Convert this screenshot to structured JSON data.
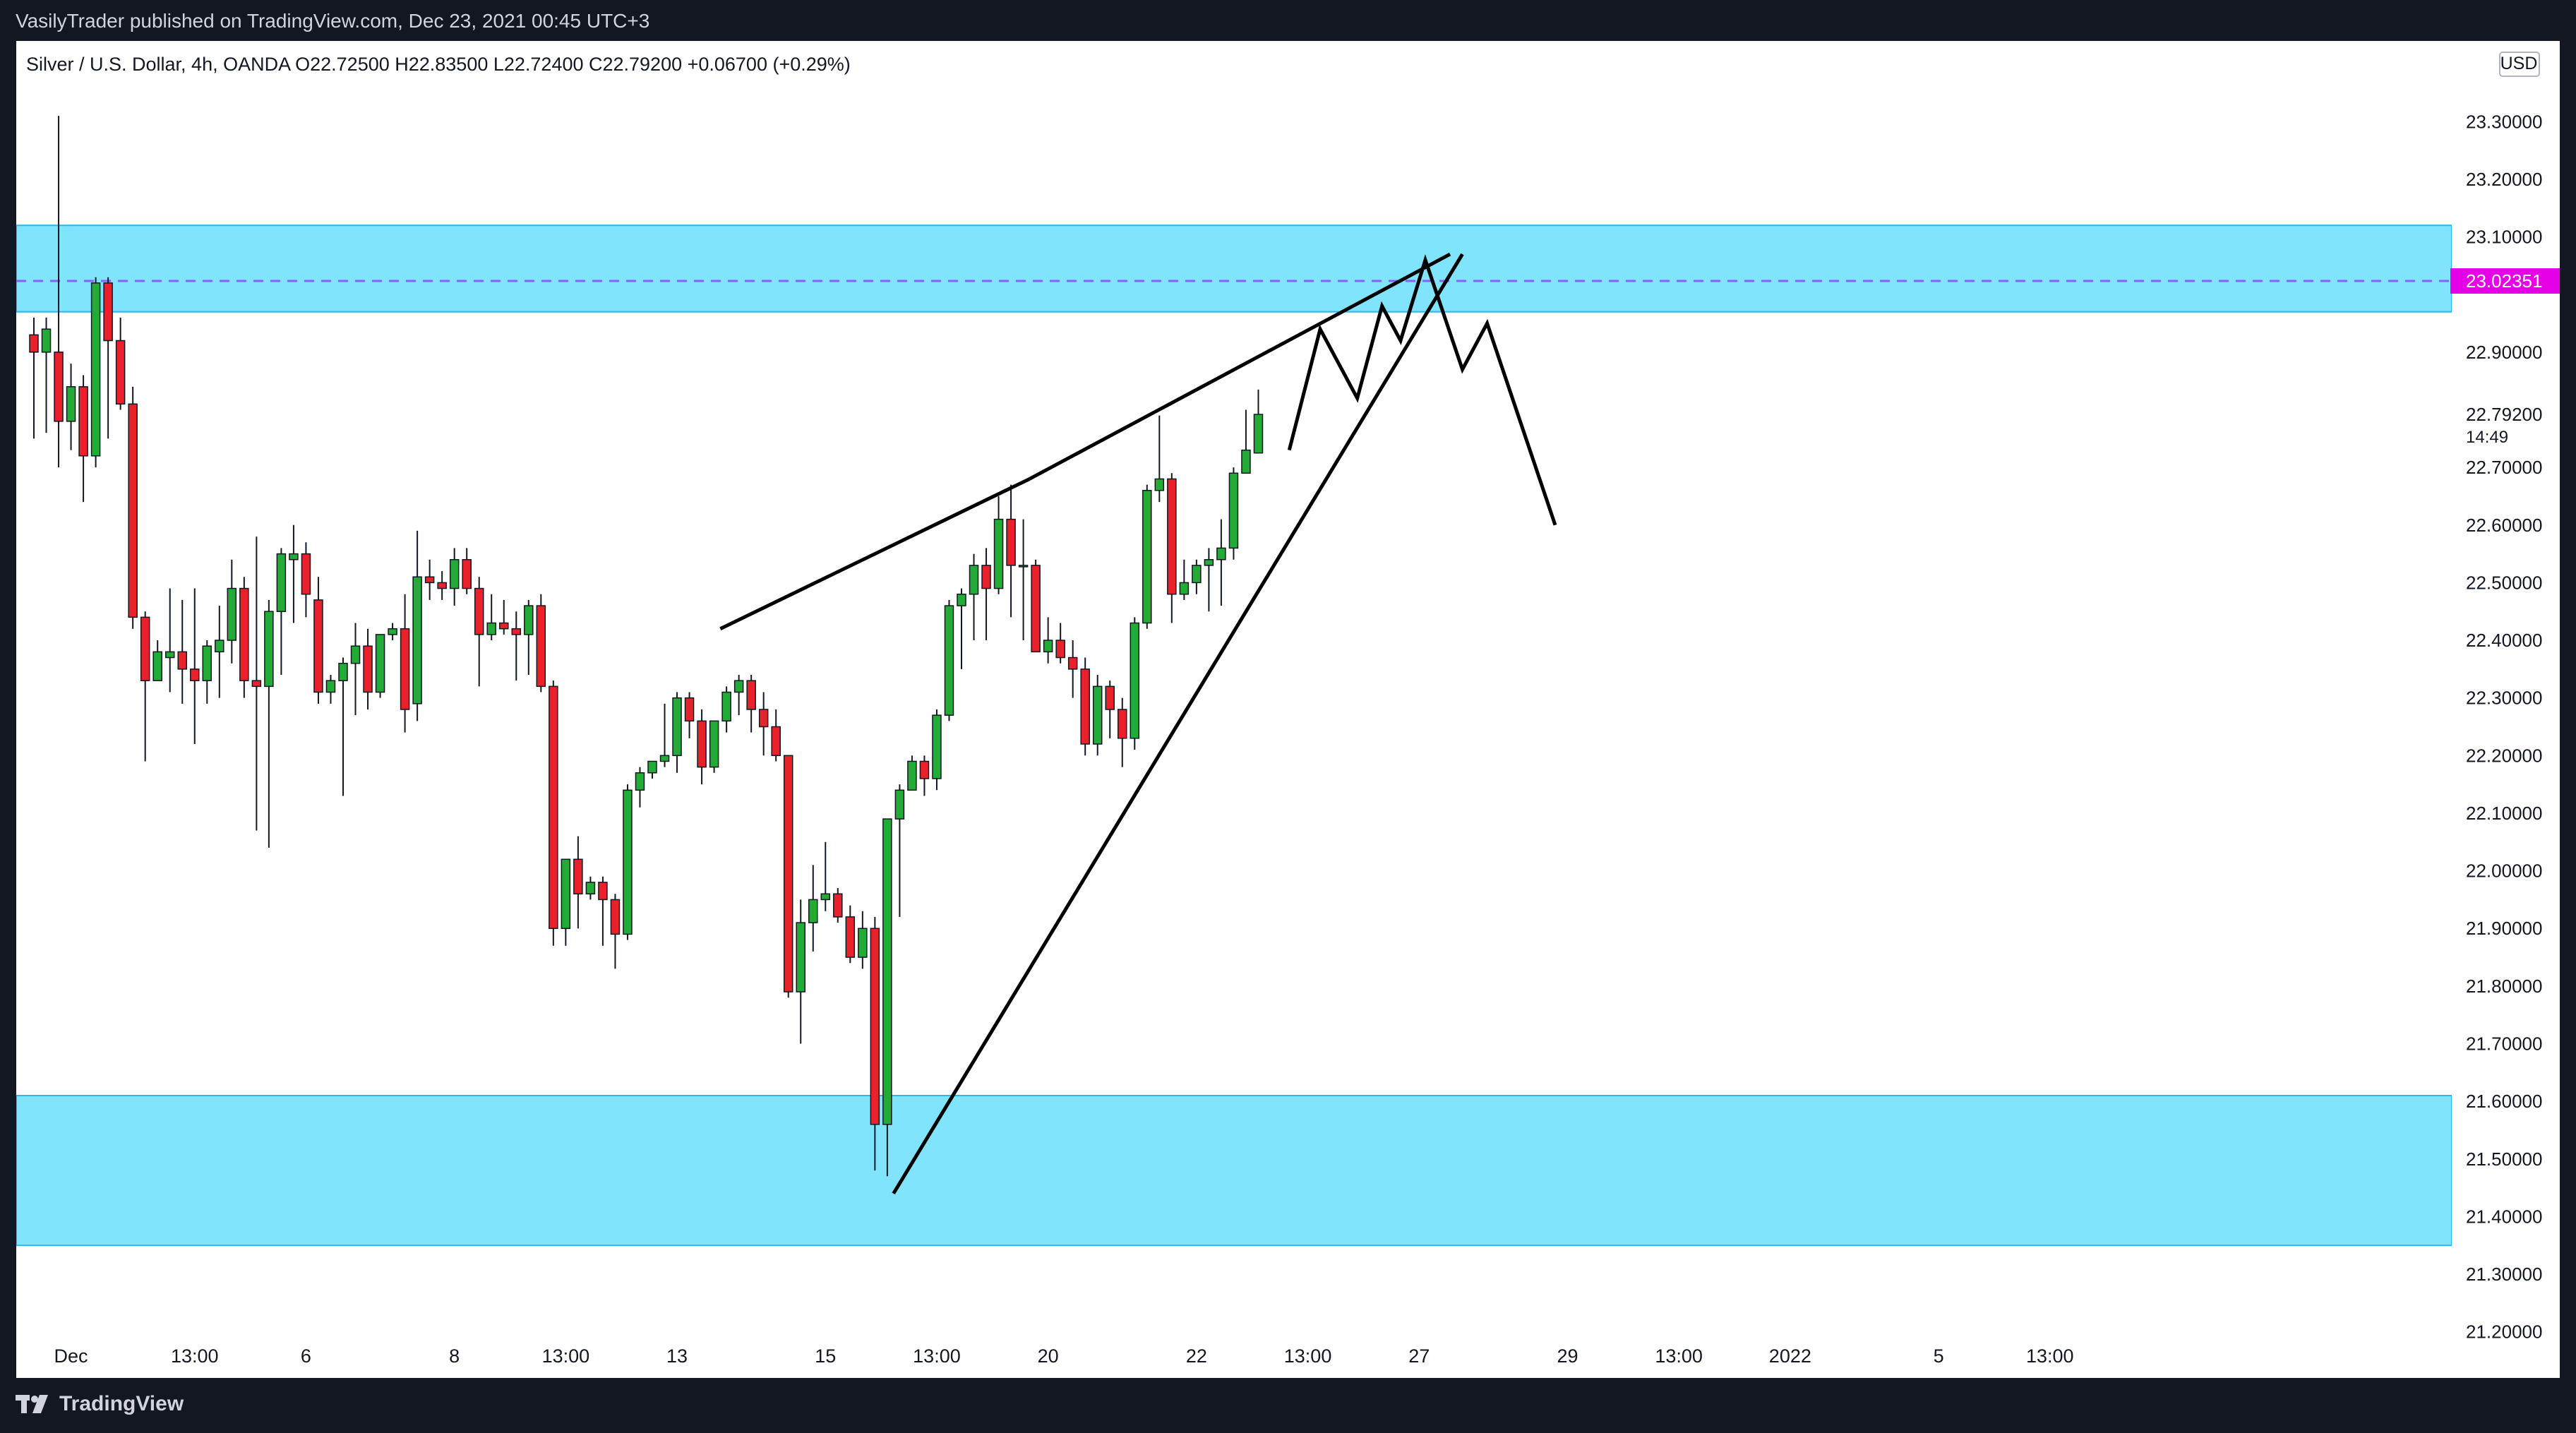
{
  "publish_line": "VasilyTrader published on TradingView.com, Dec 23, 2021 00:45 UTC+3",
  "brand": "TradingView",
  "currency": "USD",
  "symbol_line": "Silver / U.S. Dollar, 4h, OANDA  O22.72500  H22.83500  L22.72400  C22.79200  +0.06700 (+0.29%)",
  "colors": {
    "up": "#22ab36",
    "down": "#e8212b",
    "zone": "#80e4fd",
    "zone_border": "#29b6f6",
    "current_line": "#8c5cff",
    "price_badge": "#e500e5",
    "drawing": "#000000"
  },
  "chart_data": {
    "type": "candlestick",
    "title": "Silver / U.S. Dollar, 4h, OANDA",
    "ohlc_readout": {
      "open": "22.72500",
      "high": "22.83500",
      "low": "22.72400",
      "close": "22.79200",
      "change": "+0.06700 (+0.29%)"
    },
    "y_axis": {
      "ticks": [
        "23.30000",
        "23.20000",
        "23.10000",
        "22.90000",
        "22.70000",
        "22.60000",
        "22.50000",
        "22.40000",
        "22.30000",
        "22.20000",
        "22.10000",
        "22.00000",
        "21.90000",
        "21.80000",
        "21.70000",
        "21.60000",
        "21.50000",
        "21.40000",
        "21.30000",
        "21.20000"
      ],
      "ylim": [
        21.12,
        23.44
      ]
    },
    "x_axis": {
      "ticks": [
        {
          "label": "Dec",
          "bar": 3
        },
        {
          "label": "13:00",
          "bar": 13
        },
        {
          "label": "6",
          "bar": 22
        },
        {
          "label": "8",
          "bar": 34
        },
        {
          "label": "13:00",
          "bar": 43
        },
        {
          "label": "13",
          "bar": 52
        },
        {
          "label": "15",
          "bar": 64
        },
        {
          "label": "13:00",
          "bar": 73
        },
        {
          "label": "20",
          "bar": 82
        },
        {
          "label": "22",
          "bar": 94
        },
        {
          "label": "13:00",
          "bar": 103
        },
        {
          "label": "27",
          "bar": 112
        },
        {
          "label": "29",
          "bar": 124
        },
        {
          "label": "13:00",
          "bar": 133
        },
        {
          "label": "2022",
          "bar": 142
        },
        {
          "label": "5",
          "bar": 154
        },
        {
          "label": "13:00",
          "bar": 163
        }
      ]
    },
    "current_price": {
      "value": 23.0235,
      "label": "23.02351"
    },
    "last_price": {
      "value": 22.792,
      "label": "22.79200",
      "countdown": "14:49"
    },
    "zones": [
      {
        "from": 22.97,
        "to": 23.12
      },
      {
        "from": 21.35,
        "to": 21.61
      }
    ],
    "candles": [
      {
        "o": 22.93,
        "h": 22.96,
        "l": 22.75,
        "c": 22.9
      },
      {
        "o": 22.9,
        "h": 22.96,
        "l": 22.76,
        "c": 22.94
      },
      {
        "o": 22.9,
        "h": 23.31,
        "l": 22.7,
        "c": 22.78
      },
      {
        "o": 22.78,
        "h": 22.88,
        "l": 22.73,
        "c": 22.84
      },
      {
        "o": 22.84,
        "h": 22.86,
        "l": 22.64,
        "c": 22.72
      },
      {
        "o": 22.72,
        "h": 23.03,
        "l": 22.7,
        "c": 23.02
      },
      {
        "o": 23.02,
        "h": 23.03,
        "l": 22.75,
        "c": 22.92
      },
      {
        "o": 22.92,
        "h": 22.96,
        "l": 22.8,
        "c": 22.81
      },
      {
        "o": 22.81,
        "h": 22.84,
        "l": 22.42,
        "c": 22.44
      },
      {
        "o": 22.44,
        "h": 22.45,
        "l": 22.19,
        "c": 22.33
      },
      {
        "o": 22.33,
        "h": 22.4,
        "l": 22.33,
        "c": 22.38
      },
      {
        "o": 22.37,
        "h": 22.49,
        "l": 22.31,
        "c": 22.38
      },
      {
        "o": 22.38,
        "h": 22.47,
        "l": 22.29,
        "c": 22.35
      },
      {
        "o": 22.35,
        "h": 22.49,
        "l": 22.22,
        "c": 22.33
      },
      {
        "o": 22.33,
        "h": 22.4,
        "l": 22.29,
        "c": 22.39
      },
      {
        "o": 22.38,
        "h": 22.46,
        "l": 22.3,
        "c": 22.4
      },
      {
        "o": 22.4,
        "h": 22.54,
        "l": 22.36,
        "c": 22.49
      },
      {
        "o": 22.49,
        "h": 22.51,
        "l": 22.3,
        "c": 22.33
      },
      {
        "o": 22.33,
        "h": 22.58,
        "l": 22.07,
        "c": 22.32
      },
      {
        "o": 22.32,
        "h": 22.47,
        "l": 22.04,
        "c": 22.45
      },
      {
        "o": 22.45,
        "h": 22.56,
        "l": 22.34,
        "c": 22.55
      },
      {
        "o": 22.54,
        "h": 22.6,
        "l": 22.43,
        "c": 22.55
      },
      {
        "o": 22.55,
        "h": 22.57,
        "l": 22.44,
        "c": 22.48
      },
      {
        "o": 22.47,
        "h": 22.51,
        "l": 22.29,
        "c": 22.31
      },
      {
        "o": 22.31,
        "h": 22.34,
        "l": 22.29,
        "c": 22.33
      },
      {
        "o": 22.33,
        "h": 22.37,
        "l": 22.13,
        "c": 22.36
      },
      {
        "o": 22.36,
        "h": 22.43,
        "l": 22.27,
        "c": 22.39
      },
      {
        "o": 22.39,
        "h": 22.42,
        "l": 22.28,
        "c": 22.31
      },
      {
        "o": 22.31,
        "h": 22.41,
        "l": 22.3,
        "c": 22.41
      },
      {
        "o": 22.41,
        "h": 22.43,
        "l": 22.4,
        "c": 22.42
      },
      {
        "o": 22.42,
        "h": 22.48,
        "l": 22.24,
        "c": 22.28
      },
      {
        "o": 22.29,
        "h": 22.59,
        "l": 22.26,
        "c": 22.51
      },
      {
        "o": 22.51,
        "h": 22.54,
        "l": 22.47,
        "c": 22.5
      },
      {
        "o": 22.5,
        "h": 22.52,
        "l": 22.47,
        "c": 22.49
      },
      {
        "o": 22.49,
        "h": 22.56,
        "l": 22.46,
        "c": 22.54
      },
      {
        "o": 22.54,
        "h": 22.56,
        "l": 22.48,
        "c": 22.49
      },
      {
        "o": 22.49,
        "h": 22.51,
        "l": 22.32,
        "c": 22.41
      },
      {
        "o": 22.41,
        "h": 22.48,
        "l": 22.4,
        "c": 22.43
      },
      {
        "o": 22.43,
        "h": 22.47,
        "l": 22.41,
        "c": 22.42
      },
      {
        "o": 22.42,
        "h": 22.45,
        "l": 22.33,
        "c": 22.41
      },
      {
        "o": 22.41,
        "h": 22.47,
        "l": 22.34,
        "c": 22.46
      },
      {
        "o": 22.46,
        "h": 22.48,
        "l": 22.31,
        "c": 22.32
      },
      {
        "o": 22.32,
        "h": 22.33,
        "l": 21.87,
        "c": 21.9
      },
      {
        "o": 21.9,
        "h": 22.02,
        "l": 21.87,
        "c": 22.02
      },
      {
        "o": 22.02,
        "h": 22.06,
        "l": 21.9,
        "c": 21.96
      },
      {
        "o": 21.96,
        "h": 21.99,
        "l": 21.95,
        "c": 21.98
      },
      {
        "o": 21.98,
        "h": 21.99,
        "l": 21.87,
        "c": 21.95
      },
      {
        "o": 21.95,
        "h": 21.96,
        "l": 21.83,
        "c": 21.89
      },
      {
        "o": 21.89,
        "h": 22.15,
        "l": 21.88,
        "c": 22.14
      },
      {
        "o": 22.14,
        "h": 22.18,
        "l": 22.11,
        "c": 22.17
      },
      {
        "o": 22.17,
        "h": 22.19,
        "l": 22.16,
        "c": 22.19
      },
      {
        "o": 22.19,
        "h": 22.29,
        "l": 22.18,
        "c": 22.2
      },
      {
        "o": 22.2,
        "h": 22.31,
        "l": 22.17,
        "c": 22.3
      },
      {
        "o": 22.3,
        "h": 22.31,
        "l": 22.23,
        "c": 22.26
      },
      {
        "o": 22.26,
        "h": 22.28,
        "l": 22.15,
        "c": 22.18
      },
      {
        "o": 22.18,
        "h": 22.26,
        "l": 22.17,
        "c": 22.26
      },
      {
        "o": 22.26,
        "h": 22.32,
        "l": 22.24,
        "c": 22.31
      },
      {
        "o": 22.31,
        "h": 22.34,
        "l": 22.27,
        "c": 22.33
      },
      {
        "o": 22.33,
        "h": 22.34,
        "l": 22.24,
        "c": 22.28
      },
      {
        "o": 22.28,
        "h": 22.31,
        "l": 22.2,
        "c": 22.25
      },
      {
        "o": 22.25,
        "h": 22.28,
        "l": 22.19,
        "c": 22.2
      },
      {
        "o": 22.2,
        "h": 22.2,
        "l": 21.78,
        "c": 21.79
      },
      {
        "o": 21.79,
        "h": 21.95,
        "l": 21.7,
        "c": 21.91
      },
      {
        "o": 21.91,
        "h": 22.01,
        "l": 21.86,
        "c": 21.95
      },
      {
        "o": 21.95,
        "h": 22.05,
        "l": 21.93,
        "c": 21.96
      },
      {
        "o": 21.96,
        "h": 21.97,
        "l": 21.91,
        "c": 21.92
      },
      {
        "o": 21.92,
        "h": 21.94,
        "l": 21.84,
        "c": 21.85
      },
      {
        "o": 21.85,
        "h": 21.93,
        "l": 21.83,
        "c": 21.9
      },
      {
        "o": 21.9,
        "h": 21.92,
        "l": 21.48,
        "c": 21.56
      },
      {
        "o": 21.56,
        "h": 22.09,
        "l": 21.47,
        "c": 22.09
      },
      {
        "o": 22.09,
        "h": 22.15,
        "l": 21.92,
        "c": 22.14
      },
      {
        "o": 22.14,
        "h": 22.2,
        "l": 22.14,
        "c": 22.19
      },
      {
        "o": 22.19,
        "h": 22.2,
        "l": 22.13,
        "c": 22.16
      },
      {
        "o": 22.16,
        "h": 22.28,
        "l": 22.14,
        "c": 22.27
      },
      {
        "o": 22.27,
        "h": 22.47,
        "l": 22.26,
        "c": 22.46
      },
      {
        "o": 22.46,
        "h": 22.49,
        "l": 22.35,
        "c": 22.48
      },
      {
        "o": 22.48,
        "h": 22.55,
        "l": 22.4,
        "c": 22.53
      },
      {
        "o": 22.53,
        "h": 22.56,
        "l": 22.4,
        "c": 22.49
      },
      {
        "o": 22.49,
        "h": 22.65,
        "l": 22.48,
        "c": 22.61
      },
      {
        "o": 22.61,
        "h": 22.67,
        "l": 22.44,
        "c": 22.53
      },
      {
        "o": 22.53,
        "h": 22.61,
        "l": 22.4,
        "c": 22.53
      },
      {
        "o": 22.53,
        "h": 22.54,
        "l": 22.38,
        "c": 22.38
      },
      {
        "o": 22.38,
        "h": 22.44,
        "l": 22.36,
        "c": 22.4
      },
      {
        "o": 22.4,
        "h": 22.43,
        "l": 22.36,
        "c": 22.37
      },
      {
        "o": 22.37,
        "h": 22.4,
        "l": 22.3,
        "c": 22.35
      },
      {
        "o": 22.35,
        "h": 22.37,
        "l": 22.2,
        "c": 22.22
      },
      {
        "o": 22.22,
        "h": 22.34,
        "l": 22.2,
        "c": 22.32
      },
      {
        "o": 22.32,
        "h": 22.33,
        "l": 22.23,
        "c": 22.28
      },
      {
        "o": 22.28,
        "h": 22.3,
        "l": 22.18,
        "c": 22.23
      },
      {
        "o": 22.23,
        "h": 22.44,
        "l": 22.21,
        "c": 22.43
      },
      {
        "o": 22.43,
        "h": 22.67,
        "l": 22.42,
        "c": 22.66
      },
      {
        "o": 22.66,
        "h": 22.79,
        "l": 22.64,
        "c": 22.68
      },
      {
        "o": 22.68,
        "h": 22.69,
        "l": 22.43,
        "c": 22.48
      },
      {
        "o": 22.48,
        "h": 22.54,
        "l": 22.47,
        "c": 22.5
      },
      {
        "o": 22.5,
        "h": 22.54,
        "l": 22.48,
        "c": 22.53
      },
      {
        "o": 22.53,
        "h": 22.56,
        "l": 22.45,
        "c": 22.54
      },
      {
        "o": 22.54,
        "h": 22.61,
        "l": 22.46,
        "c": 22.56
      },
      {
        "o": 22.56,
        "h": 22.7,
        "l": 22.54,
        "c": 22.69
      },
      {
        "o": 22.69,
        "h": 22.8,
        "l": 22.69,
        "c": 22.73
      },
      {
        "o": 22.725,
        "h": 22.835,
        "l": 22.724,
        "c": 22.792
      }
    ],
    "annotations": {
      "wedge_upper": [
        [
          55.5,
          22.42
        ],
        [
          80.5,
          22.68
        ]
      ],
      "wedge_lower": [
        [
          69.5,
          21.44
        ],
        [
          115.5,
          23.07
        ]
      ],
      "wedge_upper_ext": [
        [
          80.5,
          22.68
        ],
        [
          114.5,
          23.07
        ]
      ],
      "projection_path": [
        [
          101.5,
          22.73
        ],
        [
          104.0,
          22.94
        ],
        [
          107.0,
          22.82
        ],
        [
          109.0,
          22.98
        ],
        [
          110.5,
          22.92
        ],
        [
          112.5,
          23.06
        ],
        [
          115.5,
          22.87
        ],
        [
          117.5,
          22.95
        ],
        [
          123.0,
          22.6
        ]
      ]
    }
  }
}
